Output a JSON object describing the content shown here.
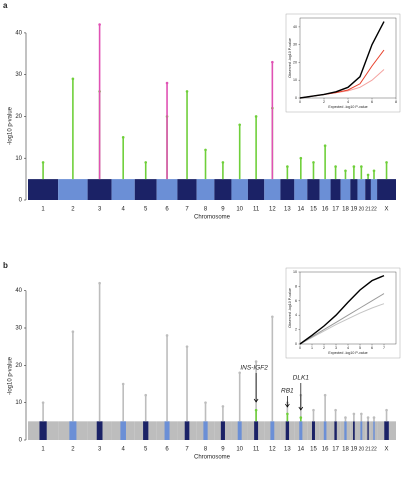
{
  "chart_data": [
    {
      "type": "manhattan",
      "panel": "a",
      "xlabel": "Chromosome",
      "ylabel": "-log10 p-value",
      "categories": [
        "1",
        "2",
        "3",
        "4",
        "5",
        "6",
        "7",
        "8",
        "9",
        "10",
        "11",
        "12",
        "13",
        "14",
        "15",
        "16",
        "17",
        "18",
        "19",
        "20",
        "21",
        "22",
        "X"
      ],
      "ylim": [
        0,
        45
      ],
      "yticks": [
        0,
        10,
        20,
        30,
        40
      ],
      "background_level": 5,
      "band_colors": [
        "#1b2266",
        "#6b8fd6"
      ],
      "series": [
        {
          "color": "#6fcf3a",
          "values": [
            9,
            29,
            26,
            15,
            9,
            20,
            26,
            12,
            9,
            18,
            20,
            22,
            8,
            10,
            9,
            13,
            8,
            7,
            8,
            8,
            6,
            7,
            9
          ]
        },
        {
          "color": "#e052b4",
          "values": [
            null,
            null,
            42,
            null,
            null,
            28,
            null,
            null,
            null,
            null,
            null,
            33,
            null,
            null,
            null,
            null,
            null,
            null,
            null,
            null,
            null,
            null,
            null
          ]
        }
      ]
    },
    {
      "type": "qq",
      "xlabel": "Expected -log10 P-value",
      "ylabel": "Observed -log10 P-value",
      "xlim": [
        0,
        8
      ],
      "ylim": [
        0,
        45
      ],
      "xticks": [
        0,
        2,
        4,
        6,
        8
      ],
      "yticks": [
        0,
        10,
        20,
        30,
        40
      ],
      "x": [
        0,
        1,
        2,
        3,
        4,
        5,
        6,
        7
      ],
      "series": [
        {
          "color": "#000000",
          "values": [
            0,
            1,
            2,
            3.5,
            6,
            12,
            30,
            43
          ]
        },
        {
          "color": "#e8412c",
          "values": [
            0,
            1,
            2,
            3,
            4.5,
            8,
            18,
            27
          ]
        },
        {
          "color": "#f4a3a0",
          "values": [
            0,
            1,
            2,
            3,
            4,
            6,
            10,
            16
          ]
        }
      ]
    },
    {
      "type": "manhattan",
      "panel": "b",
      "xlabel": "Chromosome",
      "ylabel": "-log10 p-value",
      "categories": [
        "1",
        "2",
        "3",
        "4",
        "5",
        "6",
        "7",
        "8",
        "9",
        "10",
        "11",
        "12",
        "13",
        "14",
        "15",
        "16",
        "17",
        "18",
        "19",
        "20",
        "21",
        "22",
        "X"
      ],
      "ylim": [
        0,
        45
      ],
      "yticks": [
        0,
        10,
        20,
        30,
        40
      ],
      "background_level": 5,
      "band_colors": [
        "#1b2266",
        "#6b8fd6"
      ],
      "cloud_color": "#bdbdbd",
      "series": [
        {
          "color": "#bdbdbd",
          "values": [
            10,
            29,
            42,
            15,
            12,
            28,
            25,
            10,
            9,
            18,
            21,
            33,
            10,
            12,
            8,
            12,
            8,
            6,
            7,
            7,
            6,
            6,
            8
          ]
        },
        {
          "color": "#6fcf3a",
          "values": [
            null,
            null,
            null,
            null,
            null,
            null,
            null,
            null,
            null,
            null,
            8,
            null,
            7,
            6,
            null,
            null,
            null,
            null,
            null,
            null,
            null,
            null,
            null
          ]
        }
      ],
      "annotations": [
        "INS-IGF2",
        "RB1",
        "DLK1"
      ]
    },
    {
      "type": "qq",
      "xlabel": "Expected -log10 P-value",
      "ylabel": "Observed -log10 P-value",
      "xlim": [
        0,
        8
      ],
      "ylim": [
        0,
        10
      ],
      "xticks": [
        0,
        1,
        2,
        3,
        4,
        5,
        6,
        7
      ],
      "yticks": [
        0,
        2,
        4,
        6,
        8,
        10
      ],
      "x": [
        0,
        1,
        2,
        3,
        4,
        5,
        6,
        7
      ],
      "series": [
        {
          "color": "#000000",
          "values": [
            0,
            1.2,
            2.5,
            4,
            5.8,
            7.5,
            8.8,
            9.5
          ]
        },
        {
          "color": "#9a9a9a",
          "values": [
            0,
            1,
            2,
            3,
            4,
            5,
            6,
            7
          ]
        },
        {
          "color": "#c4c4c4",
          "values": [
            0,
            0.9,
            1.8,
            2.7,
            3.5,
            4.3,
            5,
            5.6
          ]
        }
      ]
    }
  ]
}
